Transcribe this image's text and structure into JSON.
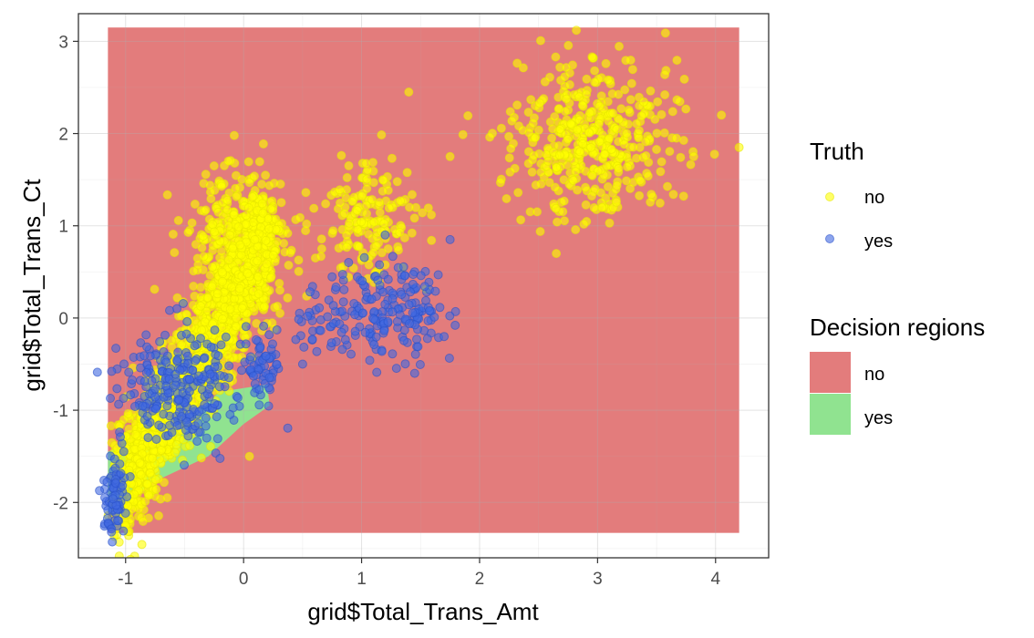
{
  "chart_data": {
    "type": "scatter",
    "xlabel": "grid$Total_Trans_Amt",
    "ylabel": "grid$Total_Trans_Ct",
    "xlim": [
      -1.4,
      4.45
    ],
    "ylim": [
      -2.6,
      3.3
    ],
    "x_ticks": [
      -1,
      0,
      1,
      2,
      3,
      4
    ],
    "y_ticks": [
      -2,
      -1,
      0,
      1,
      2,
      3
    ],
    "x_tick_labels": [
      "-1",
      "0",
      "1",
      "2",
      "3",
      "4"
    ],
    "y_tick_labels": [
      "-2",
      "-1",
      "0",
      "1",
      "2",
      "3"
    ],
    "grid": true,
    "legend_position": "right",
    "decision_regions": {
      "title": "Decision regions",
      "items": [
        {
          "label": "no",
          "color": "#e37c7c"
        },
        {
          "label": "yes",
          "color": "#90e390"
        }
      ],
      "extent": {
        "x": [
          -1.15,
          4.2
        ],
        "y": [
          -2.33,
          3.15
        ]
      },
      "yes_region_polygon": [
        [
          -1.15,
          -1.45
        ],
        [
          -0.6,
          -1.2
        ],
        [
          -0.2,
          -0.8
        ],
        [
          0.2,
          -0.72
        ],
        [
          0.22,
          -0.95
        ],
        [
          0.0,
          -1.15
        ],
        [
          -0.3,
          -1.5
        ],
        [
          -0.8,
          -1.8
        ],
        [
          -1.0,
          -2.05
        ],
        [
          -1.15,
          -2.1
        ]
      ]
    },
    "truth": {
      "title": "Truth",
      "items": [
        {
          "label": "no",
          "color": "#ffff00"
        },
        {
          "label": "yes",
          "color": "#4169e1"
        }
      ]
    },
    "point_alpha": 0.6,
    "series": [
      {
        "name": "no",
        "color": "#ffff00",
        "clusters": [
          {
            "shape": "band",
            "count": 1400,
            "x": [
              -1.05,
              0.25
            ],
            "y_center": [
              -1.9,
              0.95
            ],
            "y_spread": 0.75
          },
          {
            "shape": "ellipse",
            "count": 350,
            "cx": -0.05,
            "cy": 0.75,
            "rx": 0.4,
            "ry": 0.8
          },
          {
            "shape": "ellipse",
            "count": 170,
            "cx": 1.05,
            "cy": 1.05,
            "rx": 0.42,
            "ry": 0.6
          },
          {
            "shape": "ellipse",
            "count": 440,
            "cx": 2.95,
            "cy": 1.95,
            "rx": 0.6,
            "ry": 0.75
          }
        ],
        "points": [
          {
            "x": 2.82,
            "y": 3.12
          },
          {
            "x": 4.2,
            "y": 1.85
          },
          {
            "x": 4.05,
            "y": 2.2
          },
          {
            "x": 2.65,
            "y": 0.7
          },
          {
            "x": 1.4,
            "y": 2.45
          },
          {
            "x": 1.75,
            "y": 1.75
          },
          {
            "x": -0.25,
            "y": 1.65
          },
          {
            "x": 0.05,
            "y": -1.5
          },
          {
            "x": -1.0,
            "y": -2.25
          }
        ]
      },
      {
        "name": "yes",
        "color": "#4169e1",
        "clusters": [
          {
            "shape": "ellipse",
            "count": 260,
            "cx": -0.55,
            "cy": -0.75,
            "rx": 0.45,
            "ry": 0.6
          },
          {
            "shape": "ellipse",
            "count": 70,
            "cx": -1.1,
            "cy": -1.95,
            "rx": 0.08,
            "ry": 0.4
          },
          {
            "shape": "ellipse",
            "count": 60,
            "cx": 0.15,
            "cy": -0.55,
            "rx": 0.12,
            "ry": 0.35
          },
          {
            "shape": "ellipse",
            "count": 160,
            "cx": 1.3,
            "cy": 0.1,
            "rx": 0.38,
            "ry": 0.45
          },
          {
            "shape": "ellipse",
            "count": 50,
            "cx": 0.7,
            "cy": 0.0,
            "rx": 0.3,
            "ry": 0.35
          }
        ],
        "points": [
          {
            "x": 1.75,
            "y": 0.85
          },
          {
            "x": 1.7,
            "y": -0.2
          },
          {
            "x": 1.45,
            "y": -0.6
          },
          {
            "x": 0.5,
            "y": -0.5
          },
          {
            "x": -1.12,
            "y": -2.32
          },
          {
            "x": 1.2,
            "y": 0.9
          }
        ]
      }
    ]
  }
}
